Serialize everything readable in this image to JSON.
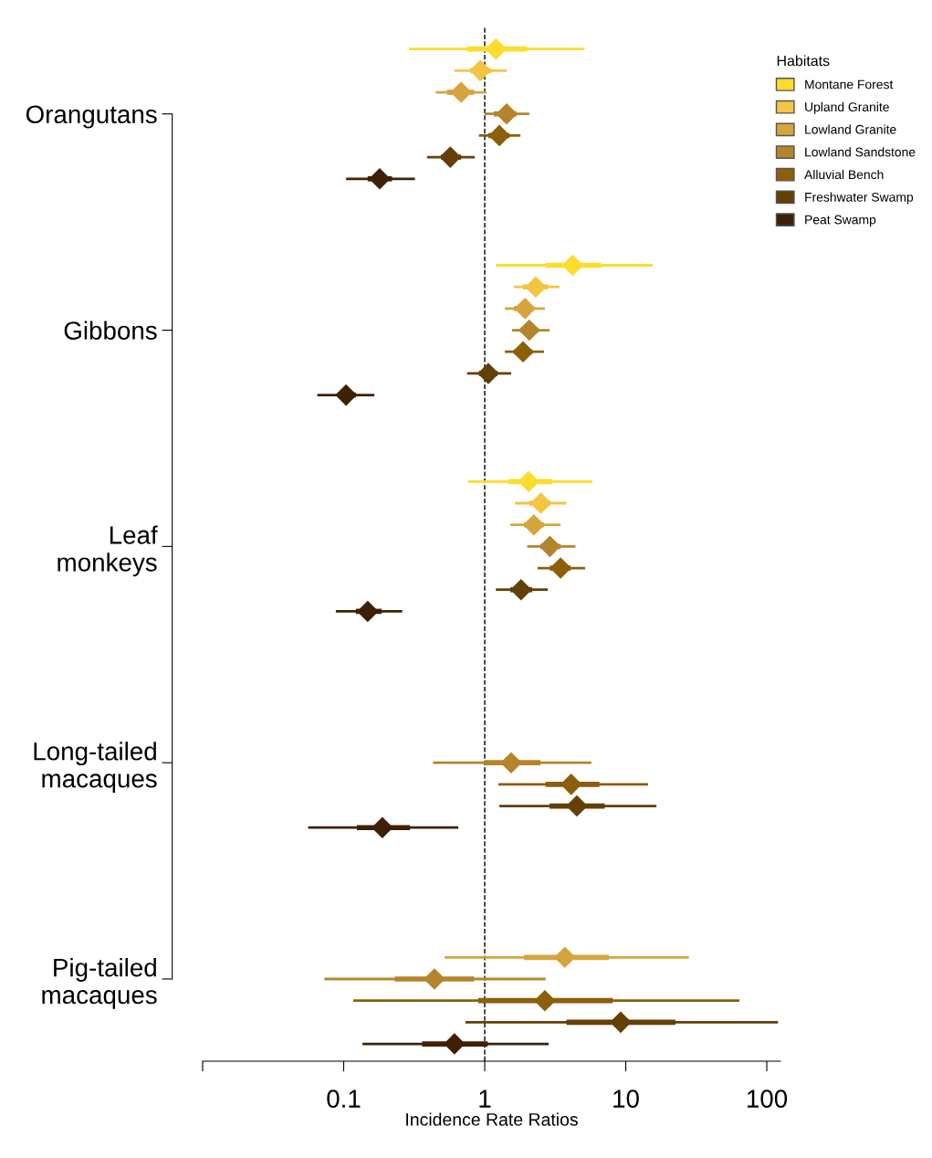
{
  "chart_data": {
    "type": "scatter",
    "orientation": "horizontal",
    "log": "x",
    "categories": [
      null,
      null,
      null,
      "Orangutans",
      null,
      null,
      null,
      null,
      null,
      null,
      null,
      null,
      null,
      "Gibbons",
      null,
      null,
      null,
      null,
      null,
      null,
      null,
      null,
      null,
      "Leaf\nmonkeys",
      null,
      null,
      null,
      null,
      null,
      null,
      null,
      null,
      null,
      "Long-tailed\nmacaques",
      null,
      null,
      null,
      null,
      null,
      null,
      null,
      null,
      null,
      "Pig-tailed\nmacaques",
      null,
      null,
      null
    ],
    "xlabel": "Incidence Rate Ratios",
    "legend_title": "Habitats",
    "legend": "top right",
    "marker": "diamond",
    "xlim": [
      0.01,
      125
    ],
    "xticks": [
      {
        "value": 0.01,
        "label": null
      },
      0.1,
      1,
      10,
      100
    ],
    "ref_lines": [
      {
        "axis": "x",
        "value": 1,
        "color": "#000000",
        "line_style": "dashed"
      }
    ],
    "series": [
      {
        "name": "Montane Forest",
        "color": "#fddc2c",
        "values": [
          1.2,
          null,
          null,
          null,
          null,
          null,
          null,
          null,
          null,
          null,
          4.2,
          null,
          null,
          null,
          null,
          null,
          null,
          null,
          null,
          null,
          2.05,
          null,
          null,
          null,
          null,
          null,
          null,
          null,
          null,
          null,
          null,
          null,
          null,
          null,
          null,
          null,
          null,
          null,
          null,
          null,
          null,
          null,
          null,
          null,
          null,
          null,
          null
        ],
        "lower": [
          0.75,
          null,
          null,
          null,
          null,
          null,
          null,
          null,
          null,
          null,
          2.7,
          null,
          null,
          null,
          null,
          null,
          null,
          null,
          null,
          null,
          1.47,
          null,
          null,
          null,
          null,
          null,
          null,
          null,
          null,
          null,
          null,
          null,
          null,
          null,
          null,
          null,
          null,
          null,
          null,
          null,
          null,
          null,
          null,
          null,
          null,
          null,
          null
        ],
        "upper": [
          2.0,
          null,
          null,
          null,
          null,
          null,
          null,
          null,
          null,
          null,
          6.7,
          null,
          null,
          null,
          null,
          null,
          null,
          null,
          null,
          null,
          3.0,
          null,
          null,
          null,
          null,
          null,
          null,
          null,
          null,
          null,
          null,
          null,
          null,
          null,
          null,
          null,
          null,
          null,
          null,
          null,
          null,
          null,
          null,
          null,
          null,
          null,
          null
        ],
        "errors": [
          [
            0.29,
            5.1
          ],
          null,
          null,
          null,
          null,
          null,
          null,
          null,
          null,
          null,
          [
            1.2,
            15.5
          ],
          null,
          null,
          null,
          null,
          null,
          null,
          null,
          null,
          null,
          [
            0.76,
            5.8
          ],
          null,
          null,
          null,
          null,
          null,
          null,
          null,
          null,
          null,
          null,
          null,
          null,
          null,
          null,
          null,
          null,
          null,
          null,
          null,
          null,
          null,
          null,
          null,
          null,
          null,
          null
        ]
      },
      {
        "name": "Upland Granite",
        "color": "#f4c443",
        "values": [
          null,
          0.93,
          null,
          null,
          null,
          null,
          null,
          null,
          null,
          null,
          null,
          2.3,
          null,
          null,
          null,
          null,
          null,
          null,
          null,
          null,
          null,
          2.5,
          null,
          null,
          null,
          null,
          null,
          null,
          null,
          null,
          null,
          null,
          null,
          null,
          null,
          null,
          null,
          null,
          null,
          null,
          null,
          null,
          null,
          null,
          null,
          null,
          null
        ],
        "lower": [
          null,
          0.79,
          null,
          null,
          null,
          null,
          null,
          null,
          null,
          null,
          null,
          1.87,
          null,
          null,
          null,
          null,
          null,
          null,
          null,
          null,
          null,
          2.07,
          null,
          null,
          null,
          null,
          null,
          null,
          null,
          null,
          null,
          null,
          null,
          null,
          null,
          null,
          null,
          null,
          null,
          null,
          null,
          null,
          null,
          null,
          null,
          null,
          null
        ],
        "upper": [
          null,
          1.11,
          null,
          null,
          null,
          null,
          null,
          null,
          null,
          null,
          null,
          2.8,
          null,
          null,
          null,
          null,
          null,
          null,
          null,
          null,
          null,
          2.9,
          null,
          null,
          null,
          null,
          null,
          null,
          null,
          null,
          null,
          null,
          null,
          null,
          null,
          null,
          null,
          null,
          null,
          null,
          null,
          null,
          null,
          null,
          null,
          null,
          null
        ],
        "errors": [
          null,
          [
            0.61,
            1.43
          ],
          null,
          null,
          null,
          null,
          null,
          null,
          null,
          null,
          null,
          [
            1.61,
            3.4
          ],
          null,
          null,
          null,
          null,
          null,
          null,
          null,
          null,
          null,
          [
            1.64,
            3.8
          ],
          null,
          null,
          null,
          null,
          null,
          null,
          null,
          null,
          null,
          null,
          null,
          null,
          null,
          null,
          null,
          null,
          null,
          null,
          null,
          null,
          null,
          null,
          null,
          null,
          null
        ]
      },
      {
        "name": "Lowland Granite",
        "color": "#d6a43c",
        "values": [
          null,
          null,
          0.68,
          null,
          null,
          null,
          null,
          null,
          null,
          null,
          null,
          null,
          1.93,
          null,
          null,
          null,
          null,
          null,
          null,
          null,
          null,
          null,
          2.23,
          null,
          null,
          null,
          null,
          null,
          null,
          null,
          null,
          null,
          null,
          null,
          null,
          null,
          null,
          null,
          null,
          null,
          null,
          null,
          3.7,
          null,
          null,
          null,
          null
        ],
        "lower": [
          null,
          null,
          0.54,
          null,
          null,
          null,
          null,
          null,
          null,
          null,
          null,
          null,
          1.61,
          null,
          null,
          null,
          null,
          null,
          null,
          null,
          null,
          null,
          1.9,
          null,
          null,
          null,
          null,
          null,
          null,
          null,
          null,
          null,
          null,
          null,
          null,
          null,
          null,
          null,
          null,
          null,
          null,
          null,
          1.9,
          null,
          null,
          null,
          null
        ],
        "upper": [
          null,
          null,
          0.84,
          null,
          null,
          null,
          null,
          null,
          null,
          null,
          null,
          null,
          2.23,
          null,
          null,
          null,
          null,
          null,
          null,
          null,
          null,
          null,
          2.63,
          null,
          null,
          null,
          null,
          null,
          null,
          null,
          null,
          null,
          null,
          null,
          null,
          null,
          null,
          null,
          null,
          null,
          null,
          null,
          7.6,
          null,
          null,
          null,
          null
        ],
        "errors": [
          null,
          null,
          [
            0.45,
            1.03
          ],
          null,
          null,
          null,
          null,
          null,
          null,
          null,
          null,
          null,
          [
            1.39,
            2.67
          ],
          null,
          null,
          null,
          null,
          null,
          null,
          null,
          null,
          null,
          [
            1.52,
            3.45
          ],
          null,
          null,
          null,
          null,
          null,
          null,
          null,
          null,
          null,
          null,
          null,
          null,
          null,
          null,
          null,
          null,
          null,
          null,
          null,
          [
            0.52,
            28
          ],
          null,
          null,
          null,
          null
        ]
      },
      {
        "name": "Lowland Sandstone",
        "color": "#b5852b",
        "values": [
          null,
          null,
          null,
          1.43,
          null,
          null,
          null,
          null,
          null,
          null,
          null,
          null,
          null,
          2.07,
          null,
          null,
          null,
          null,
          null,
          null,
          null,
          null,
          null,
          2.9,
          null,
          null,
          null,
          null,
          null,
          null,
          null,
          null,
          null,
          1.54,
          null,
          null,
          null,
          null,
          null,
          null,
          null,
          null,
          null,
          0.44,
          null,
          null,
          null
        ],
        "lower": [
          null,
          null,
          null,
          1.16,
          null,
          null,
          null,
          null,
          null,
          null,
          null,
          null,
          null,
          1.79,
          null,
          null,
          null,
          null,
          null,
          null,
          null,
          null,
          null,
          2.48,
          null,
          null,
          null,
          null,
          null,
          null,
          null,
          null,
          null,
          1.0,
          null,
          null,
          null,
          null,
          null,
          null,
          null,
          null,
          null,
          0.23,
          null,
          null,
          null
        ],
        "upper": [
          null,
          null,
          null,
          1.68,
          null,
          null,
          null,
          null,
          null,
          null,
          null,
          null,
          null,
          2.4,
          null,
          null,
          null,
          null,
          null,
          null,
          null,
          null,
          null,
          3.45,
          null,
          null,
          null,
          null,
          null,
          null,
          null,
          null,
          null,
          2.48,
          null,
          null,
          null,
          null,
          null,
          null,
          null,
          null,
          null,
          0.84,
          null,
          null,
          null
        ],
        "errors": [
          null,
          null,
          null,
          [
            1.0,
            2.07
          ],
          null,
          null,
          null,
          null,
          null,
          null,
          null,
          null,
          null,
          [
            1.56,
            2.88
          ],
          null,
          null,
          null,
          null,
          null,
          null,
          null,
          null,
          null,
          [
            2.0,
            4.4
          ],
          null,
          null,
          null,
          null,
          null,
          null,
          null,
          null,
          null,
          [
            0.43,
            5.7
          ],
          null,
          null,
          null,
          null,
          null,
          null,
          null,
          null,
          null,
          [
            0.073,
            2.7
          ],
          null,
          null,
          null
        ]
      },
      {
        "name": "Alluvial Bench",
        "color": "#8c5f0b",
        "values": [
          null,
          null,
          null,
          null,
          1.27,
          null,
          null,
          null,
          null,
          null,
          null,
          null,
          null,
          null,
          1.87,
          null,
          null,
          null,
          null,
          null,
          null,
          null,
          null,
          null,
          3.45,
          null,
          null,
          null,
          null,
          null,
          null,
          null,
          null,
          null,
          4.1,
          null,
          null,
          null,
          null,
          null,
          null,
          null,
          null,
          null,
          2.67,
          null,
          null
        ],
        "lower": [
          null,
          null,
          null,
          null,
          1.06,
          null,
          null,
          null,
          null,
          null,
          null,
          null,
          null,
          null,
          1.61,
          null,
          null,
          null,
          null,
          null,
          null,
          null,
          null,
          null,
          2.9,
          null,
          null,
          null,
          null,
          null,
          null,
          null,
          null,
          null,
          2.7,
          null,
          null,
          null,
          null,
          null,
          null,
          null,
          null,
          null,
          0.9,
          null,
          null
        ],
        "upper": [
          null,
          null,
          null,
          null,
          1.5,
          null,
          null,
          null,
          null,
          null,
          null,
          null,
          null,
          null,
          2.17,
          null,
          null,
          null,
          null,
          null,
          null,
          null,
          null,
          null,
          4.06,
          null,
          null,
          null,
          null,
          null,
          null,
          null,
          null,
          null,
          6.5,
          null,
          null,
          null,
          null,
          null,
          null,
          null,
          null,
          null,
          8.1,
          null,
          null
        ],
        "errors": [
          null,
          null,
          null,
          null,
          [
            0.91,
            1.79
          ],
          null,
          null,
          null,
          null,
          null,
          null,
          null,
          null,
          null,
          [
            1.39,
            2.63
          ],
          null,
          null,
          null,
          null,
          null,
          null,
          null,
          null,
          null,
          [
            2.37,
            5.15
          ],
          null,
          null,
          null,
          null,
          null,
          null,
          null,
          null,
          null,
          [
            1.25,
            14.4
          ],
          null,
          null,
          null,
          null,
          null,
          null,
          null,
          null,
          null,
          [
            0.117,
            64
          ],
          null,
          null
        ]
      },
      {
        "name": "Freshwater Swamp",
        "color": "#643f06",
        "values": [
          null,
          null,
          null,
          null,
          null,
          0.57,
          null,
          null,
          null,
          null,
          null,
          null,
          null,
          null,
          null,
          1.06,
          null,
          null,
          null,
          null,
          null,
          null,
          null,
          null,
          null,
          1.81,
          null,
          null,
          null,
          null,
          null,
          null,
          null,
          null,
          null,
          4.5,
          null,
          null,
          null,
          null,
          null,
          null,
          null,
          null,
          null,
          9.2,
          null
        ],
        "lower": [
          null,
          null,
          null,
          null,
          null,
          0.49,
          null,
          null,
          null,
          null,
          null,
          null,
          null,
          null,
          null,
          0.91,
          null,
          null,
          null,
          null,
          null,
          null,
          null,
          null,
          null,
          1.52,
          null,
          null,
          null,
          null,
          null,
          null,
          null,
          null,
          null,
          2.88,
          null,
          null,
          null,
          null,
          null,
          null,
          null,
          null,
          null,
          3.8,
          null
        ],
        "upper": [
          null,
          null,
          null,
          null,
          null,
          0.68,
          null,
          null,
          null,
          null,
          null,
          null,
          null,
          null,
          null,
          1.23,
          null,
          null,
          null,
          null,
          null,
          null,
          null,
          null,
          null,
          2.17,
          null,
          null,
          null,
          null,
          null,
          null,
          null,
          null,
          null,
          7.1,
          null,
          null,
          null,
          null,
          null,
          null,
          null,
          null,
          null,
          22.5,
          null
        ],
        "errors": [
          null,
          null,
          null,
          null,
          null,
          [
            0.39,
            0.85
          ],
          null,
          null,
          null,
          null,
          null,
          null,
          null,
          null,
          null,
          [
            0.75,
            1.54
          ],
          null,
          null,
          null,
          null,
          null,
          null,
          null,
          null,
          null,
          [
            1.2,
            2.8
          ],
          null,
          null,
          null,
          null,
          null,
          null,
          null,
          null,
          null,
          [
            1.27,
            16.5
          ],
          null,
          null,
          null,
          null,
          null,
          null,
          null,
          null,
          null,
          [
            0.73,
            120
          ],
          null
        ]
      },
      {
        "name": "Peat Swamp",
        "color": "#3f2005",
        "values": [
          null,
          null,
          null,
          null,
          null,
          null,
          0.18,
          null,
          null,
          null,
          null,
          null,
          null,
          null,
          null,
          null,
          0.104,
          null,
          null,
          null,
          null,
          null,
          null,
          null,
          null,
          null,
          0.148,
          null,
          null,
          null,
          null,
          null,
          null,
          null,
          null,
          null,
          0.188,
          null,
          null,
          null,
          null,
          null,
          null,
          null,
          null,
          null,
          0.61
        ],
        "lower": [
          null,
          null,
          null,
          null,
          null,
          null,
          0.148,
          null,
          null,
          null,
          null,
          null,
          null,
          null,
          null,
          null,
          0.091,
          null,
          null,
          null,
          null,
          null,
          null,
          null,
          null,
          null,
          0.122,
          null,
          null,
          null,
          null,
          null,
          null,
          null,
          null,
          null,
          0.124,
          null,
          null,
          null,
          null,
          null,
          null,
          null,
          null,
          null,
          0.36
        ],
        "upper": [
          null,
          null,
          null,
          null,
          null,
          null,
          0.22,
          null,
          null,
          null,
          null,
          null,
          null,
          null,
          null,
          null,
          0.122,
          null,
          null,
          null,
          null,
          null,
          null,
          null,
          null,
          null,
          0.186,
          null,
          null,
          null,
          null,
          null,
          null,
          null,
          null,
          null,
          0.295,
          null,
          null,
          null,
          null,
          null,
          null,
          null,
          null,
          null,
          1.05
        ],
        "errors": [
          null,
          null,
          null,
          null,
          null,
          null,
          [
            0.104,
            0.32
          ],
          null,
          null,
          null,
          null,
          null,
          null,
          null,
          null,
          null,
          [
            0.065,
            0.165
          ],
          null,
          null,
          null,
          null,
          null,
          null,
          null,
          null,
          null,
          [
            0.088,
            0.26
          ],
          null,
          null,
          null,
          null,
          null,
          null,
          null,
          null,
          null,
          [
            0.056,
            0.65
          ],
          null,
          null,
          null,
          null,
          null,
          null,
          null,
          null,
          null,
          [
            0.136,
            2.84
          ]
        ]
      }
    ]
  }
}
